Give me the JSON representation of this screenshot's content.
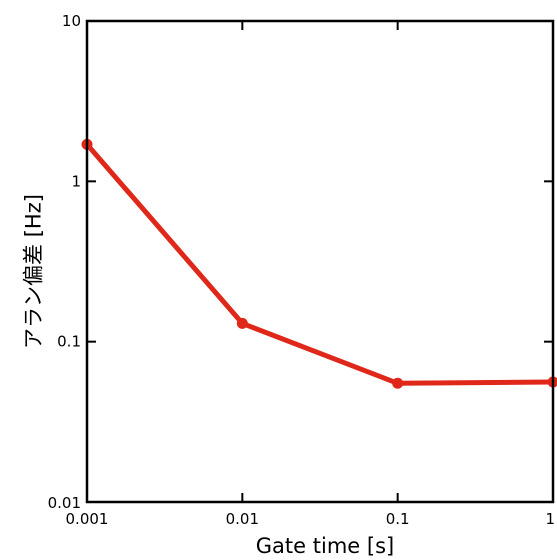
{
  "chart_data": {
    "type": "line",
    "xlabel": "Gate time [s]",
    "ylabel": "アラン偏差 [Hz]",
    "xscale": "log",
    "yscale": "log",
    "xlim": [
      0.001,
      1
    ],
    "ylim": [
      0.01,
      10
    ],
    "grid": false,
    "legend": "none",
    "x_ticks": [
      {
        "value": 0.001,
        "label": "0.001"
      },
      {
        "value": 0.01,
        "label": "0.01"
      },
      {
        "value": 0.1,
        "label": "0.1"
      },
      {
        "value": 1,
        "label": "1"
      }
    ],
    "y_ticks": [
      {
        "value": 0.01,
        "label": "0.01"
      },
      {
        "value": 0.1,
        "label": "0.1"
      },
      {
        "value": 1,
        "label": "1"
      },
      {
        "value": 10,
        "label": "10"
      }
    ],
    "series": [
      {
        "color": "#e0281a",
        "points": [
          {
            "x": 0.001,
            "y": 1.7
          },
          {
            "x": 0.01,
            "y": 0.13
          },
          {
            "x": 0.1,
            "y": 0.055
          },
          {
            "x": 1,
            "y": 0.056
          }
        ]
      }
    ]
  }
}
